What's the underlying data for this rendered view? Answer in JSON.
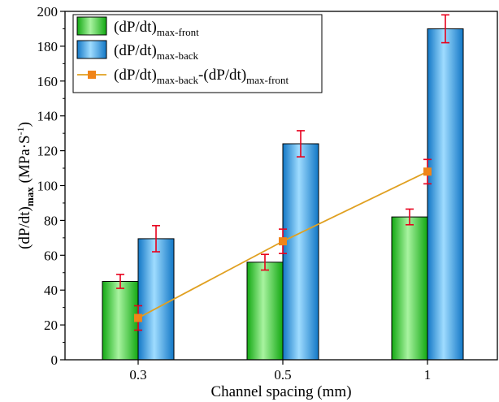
{
  "chart_data": {
    "type": "bar",
    "xlabel": "Channel spacing (mm)",
    "ylabel": {
      "main": "(dP/dt)",
      "sub": "max",
      "unit_open": " (MPa·S",
      "unit_sup": "-1",
      "unit_close": ")"
    },
    "ylim": [
      0,
      200
    ],
    "yticks": [
      0,
      20,
      40,
      60,
      80,
      100,
      120,
      140,
      160,
      180,
      200
    ],
    "categories": [
      "0.3",
      "0.5",
      "1"
    ],
    "grid": false,
    "legend_position": "top-left",
    "series": [
      {
        "kind": "bar",
        "name_main": "(dP/dt)",
        "name_sub": "max-front",
        "values": [
          45,
          56,
          82
        ],
        "errors": [
          4,
          4.5,
          4.5
        ],
        "color_light": "#a8f3a0",
        "color_dark": "#12a812"
      },
      {
        "kind": "bar",
        "name_main": "(dP/dt)",
        "name_sub": "max-back",
        "values": [
          69.5,
          124,
          190
        ],
        "errors": [
          7.5,
          7.5,
          8
        ],
        "color_light": "#9fdcff",
        "color_dark": "#1277c6"
      },
      {
        "kind": "line",
        "name_parts": [
          {
            "t": "(dP/dt)",
            "sub": false
          },
          {
            "t": "max-back",
            "sub": true
          },
          {
            "t": "-(dP/dt)",
            "sub": false
          },
          {
            "t": "max-front",
            "sub": true
          }
        ],
        "values": [
          24,
          68,
          108
        ],
        "errors": [
          7,
          7,
          7
        ],
        "color": "#e0a021",
        "marker_color": "#f08519"
      }
    ],
    "error_bar_color": "#e8001c"
  }
}
